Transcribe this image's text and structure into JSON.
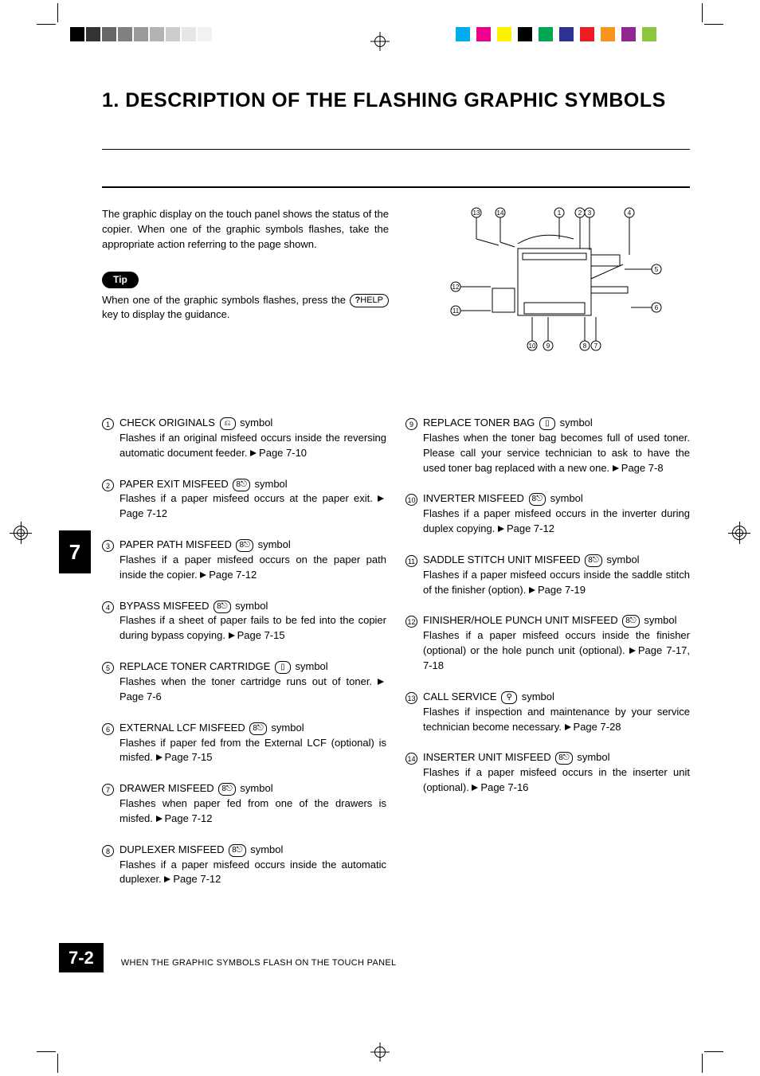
{
  "reg": {
    "gray_shades": [
      "#000000",
      "#333333",
      "#666666",
      "#808080",
      "#999999",
      "#b3b3b3",
      "#cccccc",
      "#e6e6e6",
      "#f2f2f2",
      "#ffffff"
    ],
    "cmyk": [
      "#00aeef",
      "#ec008c",
      "#fff200",
      "#000000",
      "#00a651",
      "#2e3192",
      "#ed1c24",
      "#f7941d",
      "#92278f",
      "#8dc63f"
    ]
  },
  "title": "1. DESCRIPTION OF THE FLASHING GRAPHIC SYMBOLS",
  "intro": "The graphic display on the touch panel shows the status of the copier. When one of the graphic symbols flashes, take the appropriate action referring to the page shown.",
  "tip_label": "Tip",
  "tip_body_1": "When one of the graphic symbols flashes, press the ",
  "tip_body_2": " key to display the guidance.",
  "help_key": "?HELP",
  "diagram_callouts": [
    "1",
    "2",
    "3",
    "4",
    "5",
    "6",
    "7",
    "8",
    "9",
    "10",
    "11",
    "12",
    "13",
    "14"
  ],
  "items_left": [
    {
      "n": "1",
      "title": "CHECK ORIGINALS",
      "sym": "⎌",
      "suffix": " symbol",
      "desc": "Flashes if an original misfeed occurs inside the reversing automatic document feeder.",
      "page": "Page 7-10"
    },
    {
      "n": "2",
      "title": "PAPER EXIT MISFEED",
      "sym": "8⎋",
      "suffix": " symbol",
      "desc": "Flashes if a paper misfeed occurs at the paper exit.",
      "page": "Page 7-12"
    },
    {
      "n": "3",
      "title": "PAPER PATH MISFEED",
      "sym": "8⎋",
      "suffix": " symbol",
      "desc": "Flashes if a paper misfeed occurs on the paper path inside the copier.",
      "page": "Page 7-12"
    },
    {
      "n": "4",
      "title": "BYPASS MISFEED",
      "sym": "8⎋",
      "suffix": " symbol",
      "desc": "Flashes if a sheet of paper fails to be fed into the copier during bypass copying.",
      "page": "Page 7-15"
    },
    {
      "n": "5",
      "title": "REPLACE TONER CARTRIDGE",
      "sym": "▯",
      "suffix": " symbol",
      "desc": "Flashes when the toner cartridge runs out of toner.",
      "page": "Page 7-6"
    },
    {
      "n": "6",
      "title": "EXTERNAL LCF MISFEED",
      "sym": "8⎋",
      "suffix": " symbol",
      "desc": "Flashes if paper fed from the External LCF (optional) is misfed.",
      "page": "Page 7-15"
    },
    {
      "n": "7",
      "title": "DRAWER MISFEED",
      "sym": "8⎋",
      "suffix": " symbol",
      "desc": "Flashes when paper fed from one of the drawers is misfed.",
      "page": "Page 7-12"
    },
    {
      "n": "8",
      "title": "DUPLEXER MISFEED",
      "sym": "8⎋",
      "suffix": " symbol",
      "desc": "Flashes if a paper misfeed occurs inside the automatic duplexer.",
      "page": "Page 7-12"
    }
  ],
  "items_right": [
    {
      "n": "9",
      "title": "REPLACE TONER BAG",
      "sym": "▯",
      "suffix": " symbol",
      "desc": "Flashes when the toner bag becomes full of used toner. Please call your service technician to ask to have the used toner bag replaced with a new one.",
      "page": "Page 7-8"
    },
    {
      "n": "10",
      "title": "INVERTER MISFEED",
      "sym": "8⎋",
      "suffix": " symbol",
      "desc": "Flashes if a paper misfeed occurs in the inverter during duplex copying.",
      "page": "Page 7-12"
    },
    {
      "n": "11",
      "title": "SADDLE STITCH UNIT MISFEED",
      "sym": "8⎋",
      "suffix": " symbol",
      "desc": "Flashes if a paper misfeed occurs inside the saddle stitch of the finisher (option).",
      "page": "Page 7-19"
    },
    {
      "n": "12",
      "title": "FINISHER/HOLE PUNCH UNIT MISFEED",
      "sym": "8⎋",
      "suffix": " symbol",
      "desc": "Flashes if a paper misfeed occurs inside the finisher (optional) or the hole punch unit (optional).",
      "page": "Page 7-17, 7-18"
    },
    {
      "n": "13",
      "title": "CALL SERVICE",
      "sym": "⚲",
      "suffix": " symbol",
      "desc": "Flashes if inspection and maintenance by your service technician become necessary.",
      "page": "Page 7-28"
    },
    {
      "n": "14",
      "title": "INSERTER UNIT MISFEED",
      "sym": "8⎋",
      "suffix": " symbol",
      "desc": "Flashes if a paper misfeed occurs in the inserter unit (optional).",
      "page": "Page 7-16"
    }
  ],
  "side_tab": "7",
  "page_number": "7-2",
  "footer_text": "WHEN THE GRAPHIC SYMBOLS FLASH ON THE TOUCH PANEL"
}
